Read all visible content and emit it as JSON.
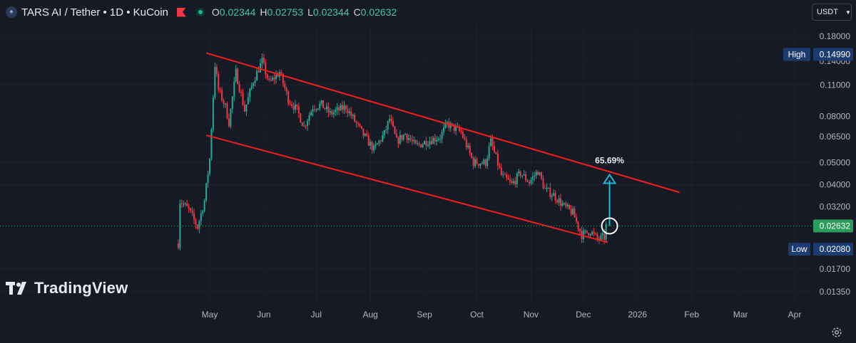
{
  "header": {
    "title": "TARS AI / Tether • 1D • KuCoin",
    "logo_icon": "tars-logo-icon",
    "flag_icon": "flag-icon",
    "status_icon": "market-live-dot-icon",
    "ohlc": [
      {
        "key": "O",
        "value": "0.02344"
      },
      {
        "key": "H",
        "value": "0.02753"
      },
      {
        "key": "L",
        "value": "0.02344"
      },
      {
        "key": "C",
        "value": "0.02632"
      }
    ]
  },
  "currency_selector": "USDT",
  "watermark": "TradingView",
  "colors": {
    "up": "#22ab94",
    "down": "#f23645",
    "channel": "#f51e1e",
    "arrow": "#1fb7d6",
    "price_label_bg": "#2a9d5a",
    "high_low_label_bg": "#1c3b6e"
  },
  "chart_data": {
    "type": "candlestick",
    "scale": "log",
    "y_tick_labels": [
      "0.18000",
      "0.14000",
      "0.11000",
      "0.08000",
      "0.06500",
      "0.05000",
      "0.04000",
      "0.03200",
      "0.01700",
      "0.01350"
    ],
    "y_ticks": [
      0.18,
      0.14,
      0.11,
      0.08,
      0.065,
      0.05,
      0.04,
      0.032,
      0.017,
      0.0135
    ],
    "x_tick_labels": [
      "May",
      "Jun",
      "Jul",
      "Aug",
      "Sep",
      "Oct",
      "Nov",
      "Dec",
      "2026",
      "Feb",
      "Mar",
      "Apr"
    ],
    "x_ticks": [
      "2025-05-01",
      "2025-06-01",
      "2025-07-01",
      "2025-08-01",
      "2025-09-01",
      "2025-10-01",
      "2025-11-01",
      "2025-12-01",
      "2026-01-01",
      "2026-02-01",
      "2026-03-01",
      "2026-04-01"
    ],
    "last_price": {
      "value": 0.02632,
      "label": "0.02632"
    },
    "high": {
      "label": "High",
      "value": 0.1499,
      "text": "0.14990"
    },
    "low": {
      "label": "Low",
      "value": 0.0208,
      "text": "0.02080"
    },
    "price_path": [
      [
        "2025-04-13",
        0.022
      ],
      [
        "2025-04-14",
        0.034
      ],
      [
        "2025-04-19",
        0.031
      ],
      [
        "2025-04-24",
        0.026
      ],
      [
        "2025-04-28",
        0.034
      ],
      [
        "2025-05-01",
        0.052
      ],
      [
        "2025-05-04",
        0.135
      ],
      [
        "2025-05-06",
        0.105
      ],
      [
        "2025-05-10",
        0.088
      ],
      [
        "2025-05-12",
        0.075
      ],
      [
        "2025-05-16",
        0.125
      ],
      [
        "2025-05-21",
        0.085
      ],
      [
        "2025-05-26",
        0.115
      ],
      [
        "2025-05-31",
        0.14
      ],
      [
        "2025-06-04",
        0.112
      ],
      [
        "2025-06-10",
        0.125
      ],
      [
        "2025-06-15",
        0.095
      ],
      [
        "2025-06-20",
        0.085
      ],
      [
        "2025-06-24",
        0.072
      ],
      [
        "2025-06-29",
        0.088
      ],
      [
        "2025-07-04",
        0.09
      ],
      [
        "2025-07-09",
        0.082
      ],
      [
        "2025-07-18",
        0.088
      ],
      [
        "2025-07-27",
        0.068
      ],
      [
        "2025-08-03",
        0.057
      ],
      [
        "2025-08-09",
        0.067
      ],
      [
        "2025-08-12",
        0.078
      ],
      [
        "2025-08-16",
        0.062
      ],
      [
        "2025-08-21",
        0.067
      ],
      [
        "2025-08-27",
        0.059
      ],
      [
        "2025-09-02",
        0.062
      ],
      [
        "2025-09-10",
        0.065
      ],
      [
        "2025-09-14",
        0.074
      ],
      [
        "2025-09-22",
        0.068
      ],
      [
        "2025-09-29",
        0.05
      ],
      [
        "2025-10-06",
        0.05
      ],
      [
        "2025-10-09",
        0.062
      ],
      [
        "2025-10-15",
        0.044
      ],
      [
        "2025-10-21",
        0.04
      ],
      [
        "2025-10-26",
        0.045
      ],
      [
        "2025-10-31",
        0.041
      ],
      [
        "2025-11-05",
        0.046
      ],
      [
        "2025-11-09",
        0.038
      ],
      [
        "2025-11-14",
        0.036
      ],
      [
        "2025-11-20",
        0.032
      ],
      [
        "2025-11-25",
        0.03
      ],
      [
        "2025-11-30",
        0.024
      ],
      [
        "2025-12-05",
        0.025
      ],
      [
        "2025-12-09",
        0.023
      ],
      [
        "2025-12-13",
        0.02344
      ],
      [
        "2025-12-14",
        0.02632
      ]
    ],
    "annotations": {
      "channel_upper": [
        [
          "2025-04-29",
          0.152
        ],
        [
          "2026-01-25",
          0.037
        ]
      ],
      "channel_lower": [
        [
          "2025-04-29",
          0.066
        ],
        [
          "2025-12-15",
          0.0223
        ]
      ],
      "target_arrow": {
        "date": "2025-12-16",
        "from": 0.02632,
        "to": 0.0436,
        "label": "65.69%"
      }
    }
  }
}
